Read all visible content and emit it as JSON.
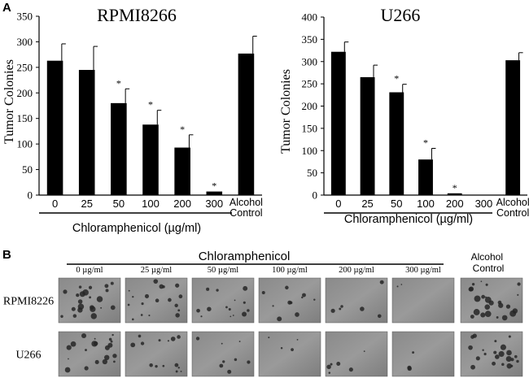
{
  "panels": {
    "a_label": "A",
    "b_label": "B"
  },
  "chart_data": [
    {
      "type": "bar",
      "title": "RPMI8266",
      "ylabel": "Tumor Colonies",
      "xlabel": "Chloramphenicol (µg/ml)",
      "ylim": [
        0,
        350
      ],
      "yticks": [
        0,
        50,
        100,
        150,
        200,
        250,
        300,
        350
      ],
      "categories": [
        "0",
        "25",
        "50",
        "100",
        "200",
        "300",
        "Alcohol Control"
      ],
      "category_lines": [
        [
          "0"
        ],
        [
          "25"
        ],
        [
          "50"
        ],
        [
          "100"
        ],
        [
          "200"
        ],
        [
          "300"
        ],
        [
          "Alcohol",
          "Control"
        ]
      ],
      "values": [
        263,
        245,
        180,
        138,
        93,
        7,
        277
      ],
      "errors": [
        33,
        46,
        28,
        28,
        25,
        0,
        34
      ],
      "significance": [
        "",
        "",
        "*",
        "*",
        "*",
        "*",
        ""
      ]
    },
    {
      "type": "bar",
      "title": "U266",
      "ylabel": "Tumor Colonies",
      "xlabel": "Chloramphenicol (µg/ml)",
      "ylim": [
        0,
        400
      ],
      "yticks": [
        0,
        50,
        100,
        150,
        200,
        250,
        300,
        350,
        400
      ],
      "categories": [
        "0",
        "25",
        "50",
        "100",
        "200",
        "300",
        "Alcohol Control"
      ],
      "category_lines": [
        [
          "0"
        ],
        [
          "25"
        ],
        [
          "50"
        ],
        [
          "100"
        ],
        [
          "200"
        ],
        [
          "300"
        ],
        [
          "Alcohol",
          "Control"
        ]
      ],
      "values": [
        322,
        265,
        231,
        80,
        4,
        0,
        303
      ],
      "errors": [
        22,
        27,
        18,
        25,
        0,
        0,
        17
      ],
      "significance": [
        "",
        "",
        "*",
        "*",
        "*",
        "",
        ""
      ]
    }
  ],
  "micrographs": {
    "group_label": "Chloramphenicol",
    "control_label": "Alcohol Control",
    "columns": [
      "0 µg/ml",
      "25 µg/ml",
      "50 µg/ml",
      "100 µg/ml",
      "200 µg/ml",
      "300 µg/ml"
    ],
    "rows": [
      "RPMI8226",
      "U266"
    ]
  }
}
